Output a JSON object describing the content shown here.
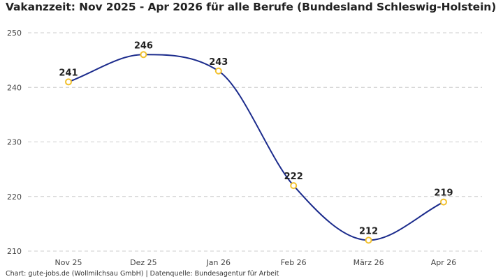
{
  "chart_data": {
    "type": "line",
    "title": "Vakanzzeit: Nov 2025 - Apr 2026 für alle Berufe (Bundesland Schleswig-Holstein)",
    "categories": [
      "Nov 25",
      "Dez 25",
      "Jan 26",
      "Feb 26",
      "März 26",
      "Apr 26"
    ],
    "series": [
      {
        "values": [
          241,
          246,
          243,
          222,
          212,
          219
        ]
      }
    ],
    "ylim": [
      209,
      250
    ],
    "yticks": [
      210,
      220,
      230,
      240,
      250
    ],
    "xlabel": "",
    "ylabel": "",
    "grid": true,
    "data_labels": true,
    "line_color": "#1b2b8c",
    "marker_color": "#f2c12e",
    "grid_color": "#cccccc",
    "source": "Chart: gute-jobs.de (Wollmilchsau GmbH) | Datenquelle: Bundesagentur für Arbeit"
  }
}
